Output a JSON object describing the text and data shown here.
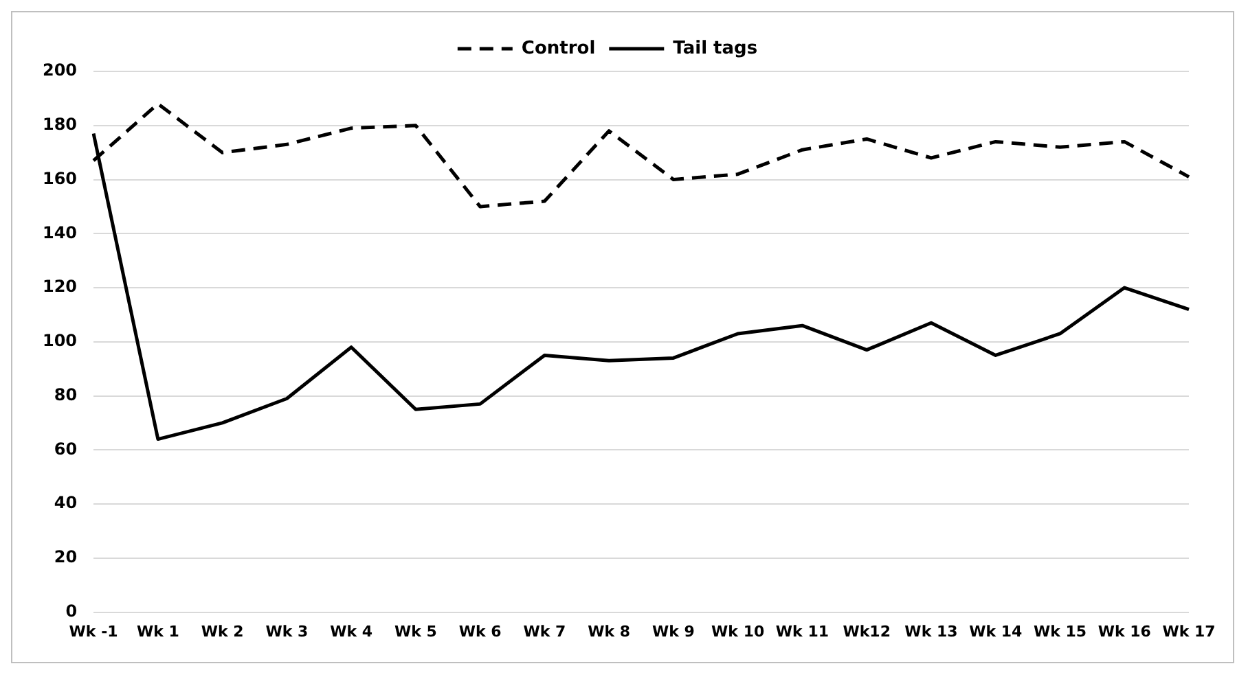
{
  "chart_data": {
    "type": "line",
    "categories": [
      "Wk -1",
      "Wk 1",
      "Wk 2",
      "Wk 3",
      "Wk 4",
      "Wk 5",
      "Wk 6",
      "Wk 7",
      "Wk 8",
      "Wk 9",
      "Wk 10",
      "Wk 11",
      "Wk12",
      "Wk 13",
      "Wk 14",
      "Wk 15",
      "Wk 16",
      "Wk 17"
    ],
    "series": [
      {
        "name": "Control",
        "color": "#000000",
        "line_style": "dashed",
        "values": [
          167,
          188,
          170,
          173,
          179,
          180,
          150,
          152,
          178,
          160,
          162,
          171,
          175,
          168,
          174,
          172,
          174,
          161
        ]
      },
      {
        "name": "Tail tags",
        "color": "#000000",
        "line_style": "solid",
        "values": [
          177,
          64,
          70,
          79,
          98,
          75,
          77,
          95,
          93,
          94,
          103,
          106,
          97,
          107,
          95,
          103,
          120,
          112
        ]
      }
    ],
    "ylim": [
      0,
      200
    ],
    "yticks": [
      0,
      20,
      40,
      60,
      80,
      100,
      120,
      140,
      160,
      180,
      200
    ],
    "grid": "y",
    "legend": "top",
    "marker": "none"
  }
}
